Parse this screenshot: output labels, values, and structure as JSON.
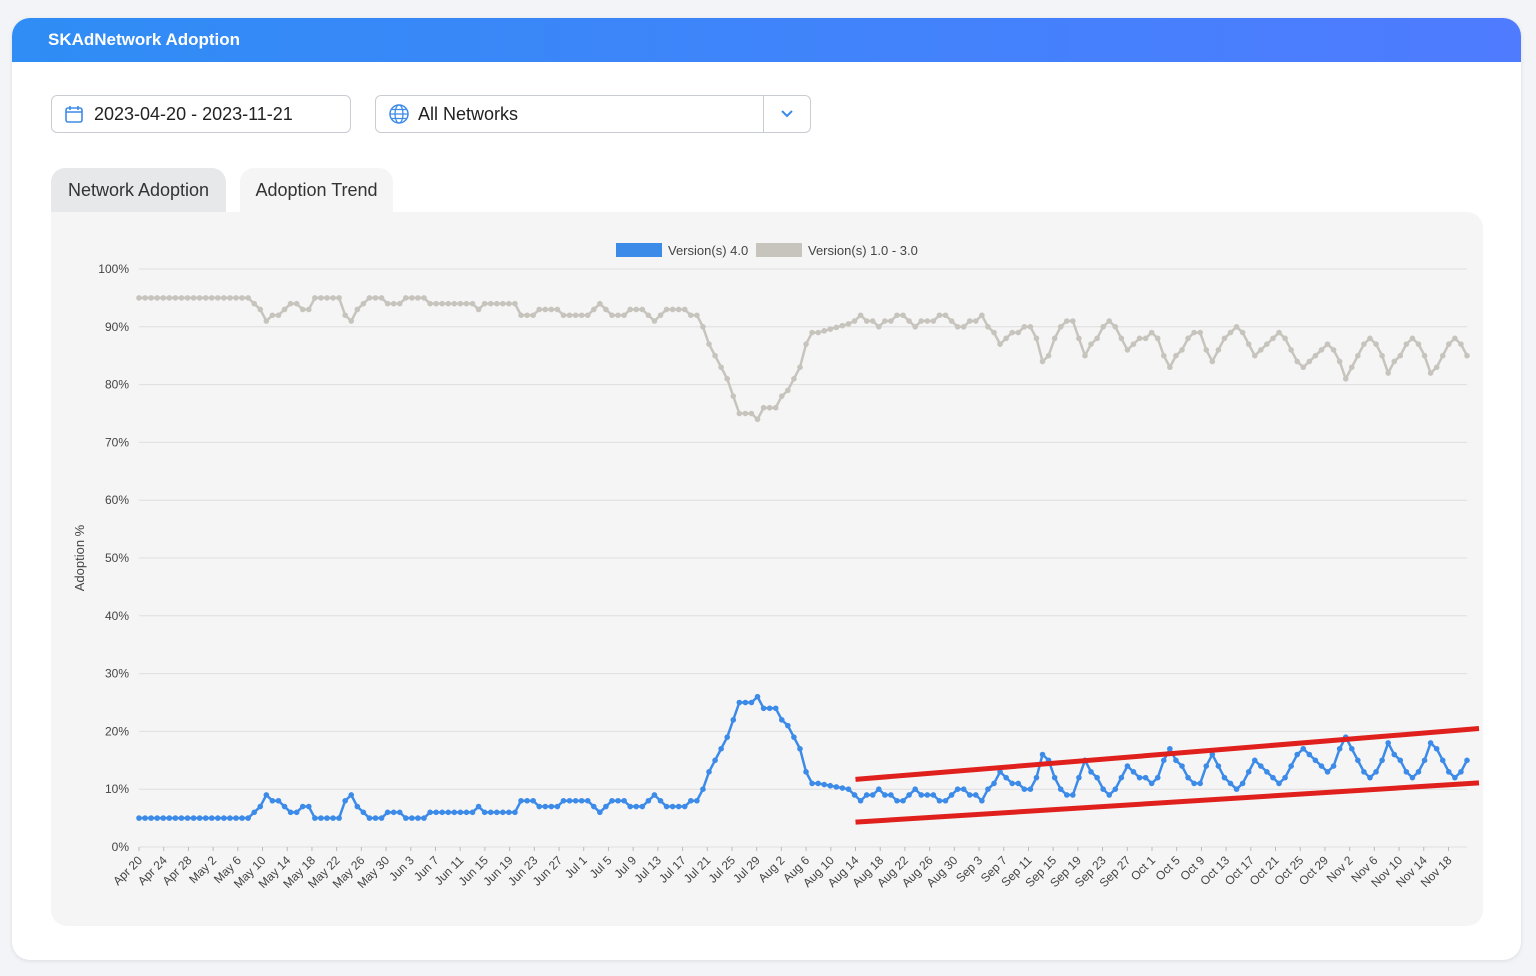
{
  "header": {
    "title": "SKAdNetwork Adoption"
  },
  "filters": {
    "date_range": "2023-04-20 - 2023-11-21",
    "network": "All Networks"
  },
  "tabs": [
    {
      "label": "Network Adoption"
    },
    {
      "label": "Adoption Trend"
    }
  ],
  "colors": {
    "header_gradient_start": "#2f8df5",
    "header_gradient_end": "#4f7bff",
    "series_v4": "#3d8be8",
    "series_v1_3": "#c7c4bd",
    "trend_lines": "#e0201c"
  },
  "icons": {
    "date": "calendar-icon",
    "network": "globe-icon",
    "dropdown": "chevron-down-icon"
  },
  "chart_data": {
    "type": "line",
    "ylabel": "Adoption %",
    "xlabel": "",
    "ylim": [
      0,
      100
    ],
    "y_ticks": [
      "0%",
      "10%",
      "20%",
      "30%",
      "40%",
      "50%",
      "60%",
      "70%",
      "80%",
      "90%",
      "100%"
    ],
    "grid": true,
    "legend_position": "top-center",
    "x_tick_labels": [
      "Apr 20",
      "Apr 24",
      "Apr 28",
      "May 2",
      "May 6",
      "May 10",
      "May 14",
      "May 18",
      "May 22",
      "May 26",
      "May 30",
      "Jun 3",
      "Jun 7",
      "Jun 11",
      "Jun 15",
      "Jun 19",
      "Jun 23",
      "Jun 27",
      "Jul 1",
      "Jul 5",
      "Jul 9",
      "Jul 13",
      "Jul 17",
      "Jul 21",
      "Jul 25",
      "Jul 29",
      "Aug 2",
      "Aug 6",
      "Aug 10",
      "Aug 14",
      "Aug 18",
      "Aug 22",
      "Aug 26",
      "Aug 30",
      "Sep 3",
      "Sep 7",
      "Sep 11",
      "Sep 15",
      "Sep 19",
      "Sep 23",
      "Sep 27",
      "Oct 1",
      "Oct 5",
      "Oct 9",
      "Oct 13",
      "Oct 17",
      "Oct 21",
      "Oct 25",
      "Oct 29",
      "Nov 2",
      "Nov 6",
      "Nov 10",
      "Nov 14",
      "Nov 18"
    ],
    "x_start_date": "2023-04-20",
    "x_end_date": "2023-11-21",
    "series": [
      {
        "name": "Version(s) 4.0",
        "values": [
          5,
          5,
          5,
          5,
          5,
          5,
          5,
          5,
          5,
          5,
          5,
          5,
          5,
          5,
          5,
          5,
          5,
          5,
          5,
          6,
          7,
          9,
          8,
          8,
          7,
          6,
          6,
          7,
          7,
          5,
          5,
          5,
          5,
          5,
          8,
          9,
          7,
          6,
          5,
          5,
          5,
          6,
          6,
          6,
          5,
          5,
          5,
          5,
          6,
          6,
          6,
          6,
          6,
          6,
          6,
          6,
          7,
          6,
          6,
          6,
          6,
          6,
          6,
          8,
          8,
          8,
          7,
          7,
          7,
          7,
          8,
          8,
          8,
          8,
          8,
          7,
          6,
          7,
          8,
          8,
          8,
          7,
          7,
          7,
          8,
          9,
          8,
          7,
          7,
          7,
          7,
          8,
          8,
          10,
          13,
          15,
          17,
          19,
          22,
          25,
          25,
          25,
          26,
          24,
          24,
          24,
          22,
          21,
          19,
          17,
          13,
          11,
          11,
          10.8,
          10.6,
          10.4,
          10.2,
          10,
          9,
          8,
          9,
          9,
          10,
          9,
          9,
          8,
          8,
          9,
          10,
          9,
          9,
          9,
          8,
          8,
          9,
          10,
          10,
          9,
          9,
          8,
          10,
          11,
          13,
          12,
          11,
          11,
          10,
          10,
          12,
          16,
          15,
          12,
          10,
          9,
          9,
          12,
          15,
          13,
          12,
          10,
          9,
          10,
          12,
          14,
          13,
          12,
          12,
          11,
          12,
          15,
          17,
          15,
          14,
          12,
          11,
          11,
          14,
          16,
          14,
          12,
          11,
          10,
          11,
          13,
          15,
          14,
          13,
          12,
          11,
          12,
          14,
          16,
          17,
          16,
          15,
          14,
          13,
          14,
          17,
          19,
          17,
          15,
          13,
          12,
          13,
          15,
          18,
          16,
          15,
          13,
          12,
          13,
          15,
          18,
          17,
          15,
          13,
          12,
          13,
          15
        ]
      },
      {
        "name": "Version(s) 1.0 - 3.0",
        "values": [
          95,
          95,
          95,
          95,
          95,
          95,
          95,
          95,
          95,
          95,
          95,
          95,
          95,
          95,
          95,
          95,
          95,
          95,
          95,
          94,
          93,
          91,
          92,
          92,
          93,
          94,
          94,
          93,
          93,
          95,
          95,
          95,
          95,
          95,
          92,
          91,
          93,
          94,
          95,
          95,
          95,
          94,
          94,
          94,
          95,
          95,
          95,
          95,
          94,
          94,
          94,
          94,
          94,
          94,
          94,
          94,
          93,
          94,
          94,
          94,
          94,
          94,
          94,
          92,
          92,
          92,
          93,
          93,
          93,
          93,
          92,
          92,
          92,
          92,
          92,
          93,
          94,
          93,
          92,
          92,
          92,
          93,
          93,
          93,
          92,
          91,
          92,
          93,
          93,
          93,
          93,
          92,
          92,
          90,
          87,
          85,
          83,
          81,
          78,
          75,
          75,
          75,
          74,
          76,
          76,
          76,
          78,
          79,
          81,
          83,
          87,
          89,
          89,
          89.3,
          89.6,
          89.9,
          90.2,
          90.5,
          91,
          92,
          91,
          91,
          90,
          91,
          91,
          92,
          92,
          91,
          90,
          91,
          91,
          91,
          92,
          92,
          91,
          90,
          90,
          91,
          91,
          92,
          90,
          89,
          87,
          88,
          89,
          89,
          90,
          90,
          88,
          84,
          85,
          88,
          90,
          91,
          91,
          88,
          85,
          87,
          88,
          90,
          91,
          90,
          88,
          86,
          87,
          88,
          88,
          89,
          88,
          85,
          83,
          85,
          86,
          88,
          89,
          89,
          86,
          84,
          86,
          88,
          89,
          90,
          89,
          87,
          85,
          86,
          87,
          88,
          89,
          88,
          86,
          84,
          83,
          84,
          85,
          86,
          87,
          86,
          84,
          81,
          83,
          85,
          87,
          88,
          87,
          85,
          82,
          84,
          85,
          87,
          88,
          87,
          85,
          82,
          83,
          85,
          87,
          88,
          87,
          85
        ]
      }
    ],
    "annotations": [
      {
        "type": "trend-line",
        "label": "",
        "x0": "2023-08-14",
        "y0": 11.7,
        "x1": "2023-11-21",
        "y1": 20.5
      },
      {
        "type": "trend-line",
        "label": "",
        "x0": "2023-08-14",
        "y0": 4.3,
        "x1": "2023-11-21",
        "y1": 11.1
      }
    ]
  }
}
